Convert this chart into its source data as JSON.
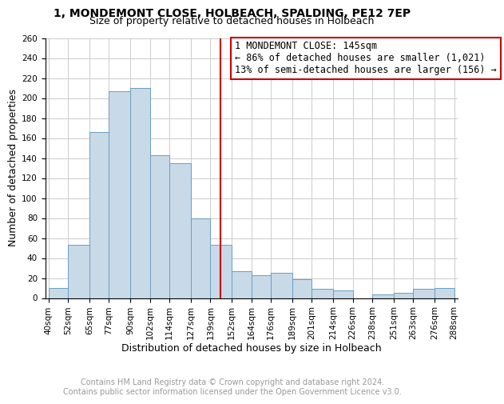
{
  "title1": "1, MONDEMONT CLOSE, HOLBEACH, SPALDING, PE12 7EP",
  "title2": "Size of property relative to detached houses in Holbeach",
  "xlabel": "Distribution of detached houses by size in Holbeach",
  "ylabel": "Number of detached properties",
  "bar_labels": [
    "40sqm",
    "52sqm",
    "65sqm",
    "77sqm",
    "90sqm",
    "102sqm",
    "114sqm",
    "127sqm",
    "139sqm",
    "152sqm",
    "164sqm",
    "176sqm",
    "189sqm",
    "201sqm",
    "214sqm",
    "226sqm",
    "238sqm",
    "251sqm",
    "263sqm",
    "276sqm",
    "288sqm"
  ],
  "bar_heights": [
    10,
    53,
    166,
    207,
    210,
    143,
    135,
    80,
    53,
    27,
    23,
    25,
    19,
    9,
    8,
    0,
    4,
    5,
    9,
    10
  ],
  "bar_color": "#c8d9e8",
  "bar_edge_color": "#6b9fc0",
  "vline_color": "#cc0000",
  "annotation_text": "1 MONDEMONT CLOSE: 145sqm\n← 86% of detached houses are smaller (1,021)\n13% of semi-detached houses are larger (156) →",
  "annotation_box_color": "#ffffff",
  "annotation_box_edge_color": "#cc0000",
  "ylim": [
    0,
    260
  ],
  "yticks": [
    0,
    20,
    40,
    60,
    80,
    100,
    120,
    140,
    160,
    180,
    200,
    220,
    240,
    260
  ],
  "footer_text": "Contains HM Land Registry data © Crown copyright and database right 2024.\nContains public sector information licensed under the Open Government Licence v3.0.",
  "bg_color": "#ffffff",
  "grid_color": "#cccccc",
  "title1_fontsize": 10,
  "title2_fontsize": 9,
  "annotation_fontsize": 8.5,
  "ylabel_fontsize": 9,
  "xlabel_fontsize": 9,
  "tick_fontsize": 7.5,
  "footer_fontsize": 7
}
